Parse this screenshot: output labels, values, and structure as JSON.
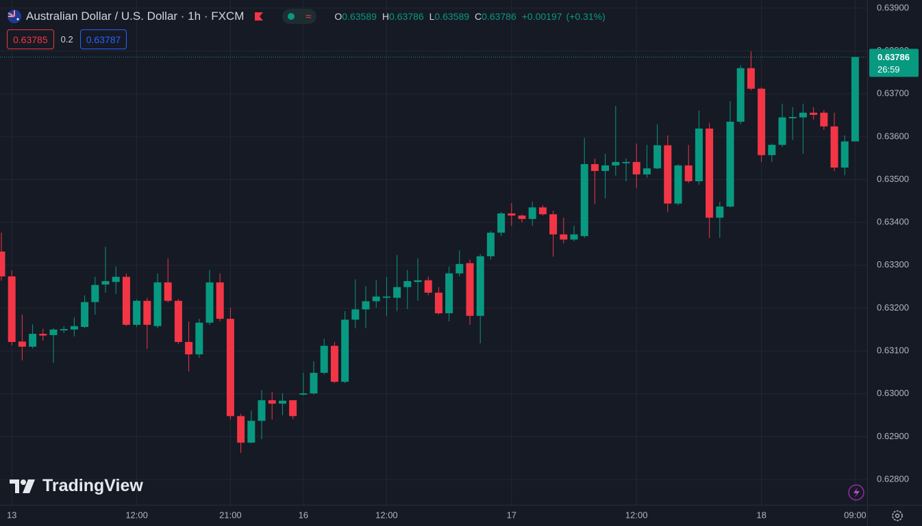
{
  "chart_data": {
    "type": "candlestick",
    "title": "Australian Dollar / U.S. Dollar · 1h · FXCM",
    "ohlc_legend": [
      {
        "letter": "O",
        "value": 0.63589
      },
      {
        "letter": "H",
        "value": 0.63786
      },
      {
        "letter": "L",
        "value": 0.63589
      },
      {
        "letter": "C",
        "value": 0.63786
      }
    ],
    "change": {
      "value": 0.00197,
      "label": "+0.00197"
    },
    "change_percent": {
      "value": 0.31,
      "label": "(+0.31%)"
    },
    "bid": 0.63785,
    "spread": 0.2,
    "ask": 0.63787,
    "last_price": 0.63786,
    "countdown": "26:59",
    "watermark": "TradingView",
    "up_color": "#089981",
    "down_color": "#f23645",
    "grid": true,
    "categories": [
      null,
      "13",
      null,
      null,
      null,
      null,
      null,
      null,
      null,
      null,
      null,
      null,
      null,
      "12:00",
      null,
      null,
      null,
      null,
      null,
      null,
      null,
      null,
      "21:00",
      null,
      null,
      null,
      null,
      null,
      null,
      "16",
      null,
      null,
      null,
      null,
      null,
      null,
      null,
      "12:00",
      null,
      null,
      null,
      null,
      null,
      null,
      null,
      null,
      null,
      null,
      null,
      "17",
      null,
      null,
      null,
      null,
      null,
      null,
      null,
      null,
      null,
      null,
      null,
      "12:00",
      null,
      null,
      null,
      null,
      null,
      null,
      null,
      null,
      null,
      null,
      null,
      "18",
      null,
      null,
      null,
      null,
      null,
      null,
      null,
      null,
      "09:00"
    ],
    "open": [
      0.63332,
      0.63274,
      0.63122,
      0.6311,
      0.6314,
      0.63137,
      0.63148,
      0.6315,
      0.63156,
      0.63214,
      0.63255,
      0.63261,
      0.63273,
      0.63161,
      0.63217,
      0.63158,
      0.6326,
      0.63217,
      0.63121,
      0.63092,
      0.63166,
      0.6326,
      0.63175,
      0.62948,
      0.62886,
      0.62937,
      0.62985,
      0.62977,
      0.62985,
      0.62998,
      0.63001,
      0.63049,
      0.63112,
      0.63028,
      0.63173,
      0.63197,
      0.63216,
      0.63224,
      0.63224,
      0.63249,
      0.63261,
      0.63265,
      0.63236,
      0.63188,
      0.63281,
      0.63305,
      0.63182,
      0.63321,
      0.63376,
      0.63421,
      0.63416,
      0.63408,
      0.63435,
      0.63419,
      0.63372,
      0.6336,
      0.63368,
      0.63536,
      0.6352,
      0.63533,
      0.63538,
      0.63541,
      0.63512,
      0.63526,
      0.6358,
      0.63444,
      0.63533,
      0.63496,
      0.63619,
      0.63411,
      0.63437,
      0.63635,
      0.6376,
      0.63712,
      0.63557,
      0.63581,
      0.63643,
      0.63645,
      0.63656,
      0.63656,
      0.63624,
      0.63528,
      0.63589
    ],
    "high": [
      0.63376,
      0.63288,
      0.63185,
      0.63162,
      0.63152,
      0.63153,
      0.63158,
      0.63178,
      0.6323,
      0.63273,
      0.63343,
      0.63297,
      0.63281,
      0.6322,
      0.63224,
      0.63281,
      0.63316,
      0.63221,
      0.63169,
      0.63175,
      0.63289,
      0.63281,
      0.63201,
      0.62953,
      0.62961,
      0.63009,
      0.63004,
      0.63001,
      0.62985,
      0.63049,
      0.63076,
      0.63128,
      0.63121,
      0.63193,
      0.63267,
      0.63251,
      0.63265,
      0.63273,
      0.63324,
      0.63289,
      0.63316,
      0.63273,
      0.63249,
      0.63297,
      0.63335,
      0.63313,
      0.63326,
      0.6338,
      0.63424,
      0.63445,
      0.63419,
      0.63448,
      0.6344,
      0.63427,
      0.63411,
      0.63392,
      0.63597,
      0.63549,
      0.6356,
      0.63672,
      0.63549,
      0.63584,
      0.63581,
      0.63629,
      0.63603,
      0.63536,
      0.63581,
      0.63661,
      0.63632,
      0.63448,
      0.63683,
      0.63767,
      0.63799,
      0.63715,
      0.63584,
      0.63677,
      0.63669,
      0.63677,
      0.63669,
      0.63662,
      0.63656,
      0.63603,
      0.63786
    ],
    "low": [
      0.63264,
      0.63113,
      0.63078,
      0.63106,
      0.63124,
      0.63072,
      0.63142,
      0.63134,
      0.63153,
      0.63185,
      0.63236,
      0.63233,
      0.63158,
      0.63156,
      0.63105,
      0.63153,
      0.63213,
      0.63116,
      0.63052,
      0.63084,
      0.63161,
      0.63169,
      0.6294,
      0.62862,
      0.62885,
      0.62894,
      0.6294,
      0.6295,
      0.62941,
      0.62996,
      0.62998,
      0.63045,
      0.63025,
      0.63025,
      0.63153,
      0.63153,
      0.63201,
      0.63182,
      0.63193,
      0.63198,
      0.63217,
      0.6323,
      0.63185,
      0.63169,
      0.63274,
      0.63161,
      0.63118,
      0.63313,
      0.63368,
      0.63392,
      0.634,
      0.63392,
      0.63416,
      0.6332,
      0.63351,
      0.63356,
      0.63364,
      0.63443,
      0.63456,
      0.63509,
      0.63496,
      0.6348,
      0.63504,
      0.63524,
      0.63424,
      0.6344,
      0.63492,
      0.63488,
      0.63364,
      0.63364,
      0.63435,
      0.63629,
      0.63708,
      0.63541,
      0.63541,
      0.63576,
      0.63592,
      0.6356,
      0.6364,
      0.63616,
      0.6352,
      0.6351,
      0.63589
    ],
    "close": [
      0.63274,
      0.63121,
      0.6311,
      0.6314,
      0.63136,
      0.6315,
      0.63151,
      0.63158,
      0.63214,
      0.63254,
      0.63263,
      0.63273,
      0.63161,
      0.63217,
      0.63161,
      0.6326,
      0.63217,
      0.63121,
      0.63092,
      0.63166,
      0.6326,
      0.63175,
      0.62948,
      0.62886,
      0.62937,
      0.62985,
      0.62977,
      0.62984,
      0.62948,
      0.63001,
      0.63049,
      0.63112,
      0.63028,
      0.63173,
      0.63197,
      0.63216,
      0.63227,
      0.63227,
      0.63249,
      0.63263,
      0.63265,
      0.63236,
      0.63188,
      0.63281,
      0.63303,
      0.63182,
      0.63321,
      0.63376,
      0.63421,
      0.63416,
      0.63408,
      0.63435,
      0.63419,
      0.63372,
      0.6336,
      0.63372,
      0.63536,
      0.6352,
      0.63533,
      0.63541,
      0.63541,
      0.63512,
      0.63526,
      0.6358,
      0.63444,
      0.63533,
      0.63496,
      0.63619,
      0.63411,
      0.63437,
      0.63635,
      0.6376,
      0.63712,
      0.63557,
      0.63581,
      0.63645,
      0.63646,
      0.63656,
      0.63651,
      0.63624,
      0.63528,
      0.63589,
      0.63786
    ],
    "ylim": [
      0.62741,
      0.63919
    ],
    "yticks": [
      {
        "value": 0.628,
        "label": "0.62800"
      },
      {
        "value": 0.629,
        "label": "0.62900"
      },
      {
        "value": 0.63,
        "label": "0.63000"
      },
      {
        "value": 0.631,
        "label": "0.63100"
      },
      {
        "value": 0.632,
        "label": "0.63200"
      },
      {
        "value": 0.633,
        "label": "0.63300"
      },
      {
        "value": 0.634,
        "label": "0.63400"
      },
      {
        "value": 0.635,
        "label": "0.63500"
      },
      {
        "value": 0.636,
        "label": "0.63600"
      },
      {
        "value": 0.637,
        "label": "0.63700"
      },
      {
        "value": 0.638,
        "label": "0.63800"
      },
      {
        "value": 0.639,
        "label": "0.63900"
      }
    ]
  }
}
